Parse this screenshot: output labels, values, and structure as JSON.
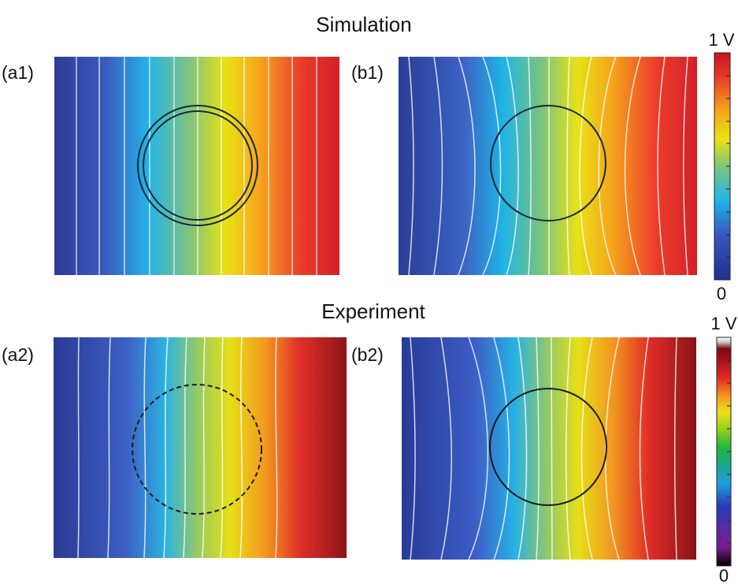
{
  "sections": {
    "simulation_title": "Simulation",
    "experiment_title": "Experiment"
  },
  "panels": [
    {
      "key": "a1",
      "label": "(a1)"
    },
    {
      "key": "b1",
      "label": "(b1)"
    },
    {
      "key": "a2",
      "label": "(a2)"
    },
    {
      "key": "b2",
      "label": "(b2)"
    }
  ],
  "colorbars": {
    "simulation": {
      "top_label": "1 V",
      "bottom_label": "0",
      "colormap": "jet"
    },
    "experiment": {
      "top_label": "1 V",
      "bottom_label": "0",
      "colormap": "nipy_spectral"
    }
  }
}
